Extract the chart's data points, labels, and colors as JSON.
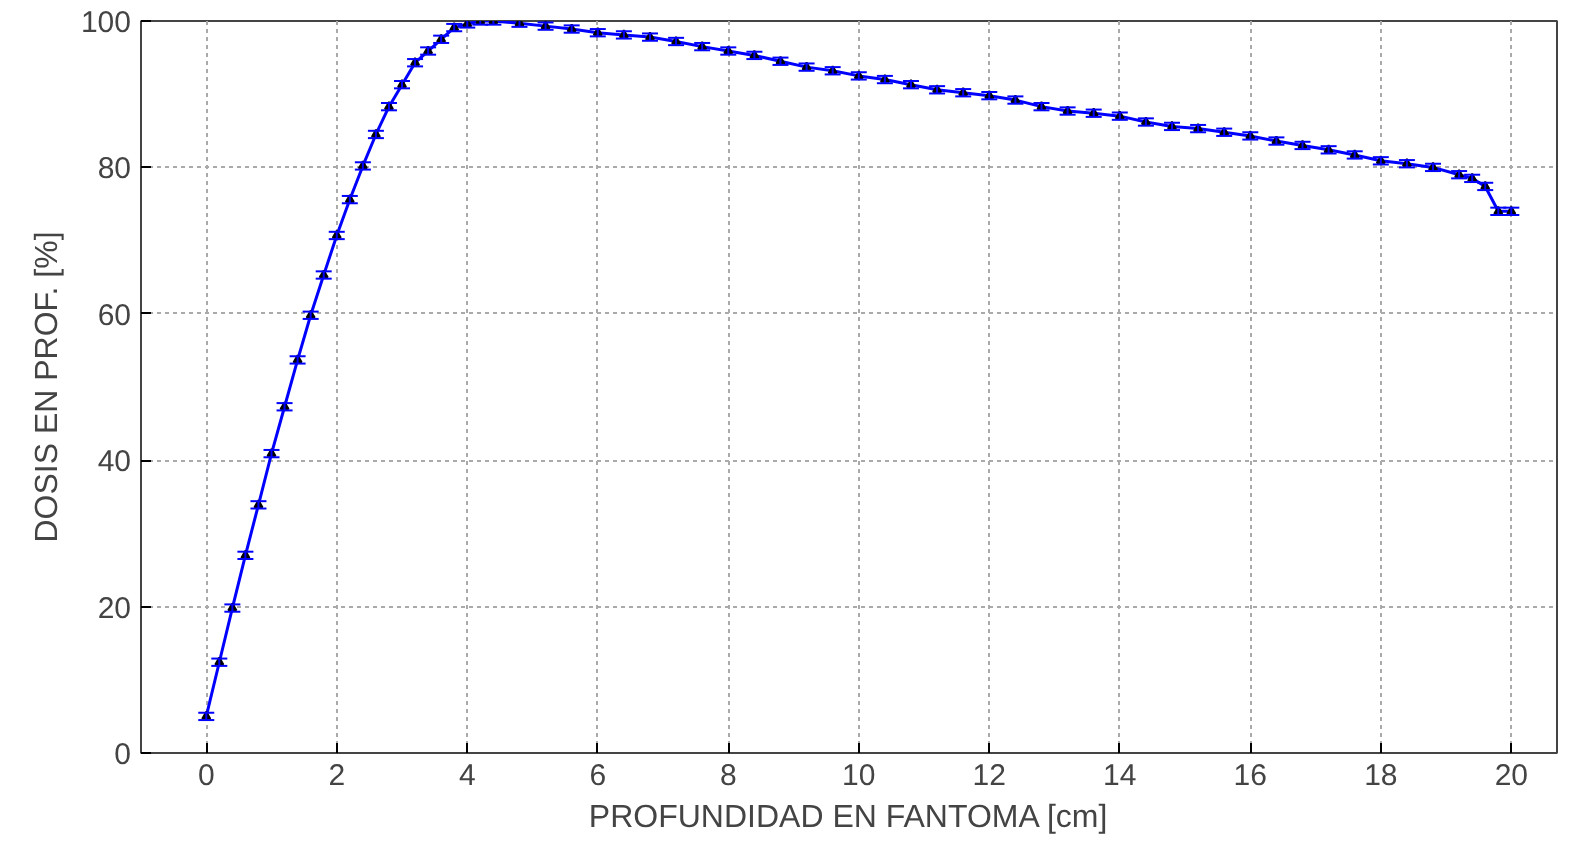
{
  "chart_data": {
    "type": "line",
    "xlabel": "PROFUNDIDAD EN FANTOMA [cm]",
    "ylabel": "DOSIS EN PROF. [%]",
    "x": [
      0,
      0.2,
      0.4,
      0.6,
      0.8,
      1.0,
      1.2,
      1.4,
      1.6,
      1.8,
      2.0,
      2.2,
      2.4,
      2.6,
      2.8,
      3.0,
      3.2,
      3.4,
      3.6,
      3.8,
      4.0,
      4.2,
      4.4,
      4.8,
      5.2,
      5.6,
      6.0,
      6.4,
      6.8,
      7.2,
      7.6,
      8.0,
      8.4,
      8.8,
      9.2,
      9.6,
      10.0,
      10.4,
      10.8,
      11.2,
      11.6,
      12.0,
      12.4,
      12.8,
      13.2,
      13.6,
      14.0,
      14.4,
      14.8,
      15.2,
      15.6,
      16.0,
      16.4,
      16.8,
      17.2,
      17.6,
      18.0,
      18.4,
      18.8,
      19.2,
      19.4,
      19.6,
      19.8,
      20.0
    ],
    "series": [
      {
        "color": "#0000ff",
        "values": [
          5.0,
          12.4,
          19.8,
          27.0,
          33.9,
          40.9,
          47.3,
          53.7,
          59.8,
          65.3,
          70.7,
          75.6,
          80.2,
          84.5,
          88.3,
          91.3,
          94.3,
          95.9,
          97.5,
          99.1,
          99.6,
          100,
          100,
          99.7,
          99.3,
          98.9,
          98.4,
          98.1,
          97.8,
          97.2,
          96.5,
          95.9,
          95.3,
          94.5,
          93.7,
          93.2,
          92.5,
          92.0,
          91.3,
          90.6,
          90.2,
          89.8,
          89.2,
          88.3,
          87.7,
          87.4,
          87.0,
          86.2,
          85.6,
          85.3,
          84.8,
          84.3,
          83.6,
          83.0,
          82.4,
          81.7,
          80.9,
          80.5,
          80.0,
          79.0,
          78.5,
          77.4,
          74.0,
          74.0
        ],
        "errors": [
          0.5,
          0.5,
          0.5,
          0.5,
          0.5,
          0.5,
          0.5,
          0.5,
          0.5,
          0.5,
          0.5,
          0.5,
          0.5,
          0.5,
          0.5,
          0.5,
          0.5,
          0.5,
          0.5,
          0.5,
          0.5,
          0.5,
          0.5,
          0.5,
          0.5,
          0.5,
          0.5,
          0.5,
          0.5,
          0.5,
          0.5,
          0.5,
          0.5,
          0.5,
          0.5,
          0.5,
          0.5,
          0.5,
          0.5,
          0.5,
          0.5,
          0.5,
          0.5,
          0.5,
          0.5,
          0.5,
          0.5,
          0.5,
          0.5,
          0.5,
          0.5,
          0.5,
          0.5,
          0.5,
          0.5,
          0.5,
          0.5,
          0.5,
          0.5,
          0.5,
          0.5,
          0.5,
          0.5,
          0.5
        ]
      }
    ],
    "xlim": [
      -1,
      20.7
    ],
    "ylim": [
      0,
      100
    ],
    "xticks": [
      0,
      2,
      4,
      6,
      8,
      10,
      12,
      14,
      16,
      18,
      20
    ],
    "yticks": [
      0,
      20,
      40,
      60,
      80,
      100
    ],
    "grid": true,
    "marker": "triangle",
    "line_style": "solid"
  }
}
